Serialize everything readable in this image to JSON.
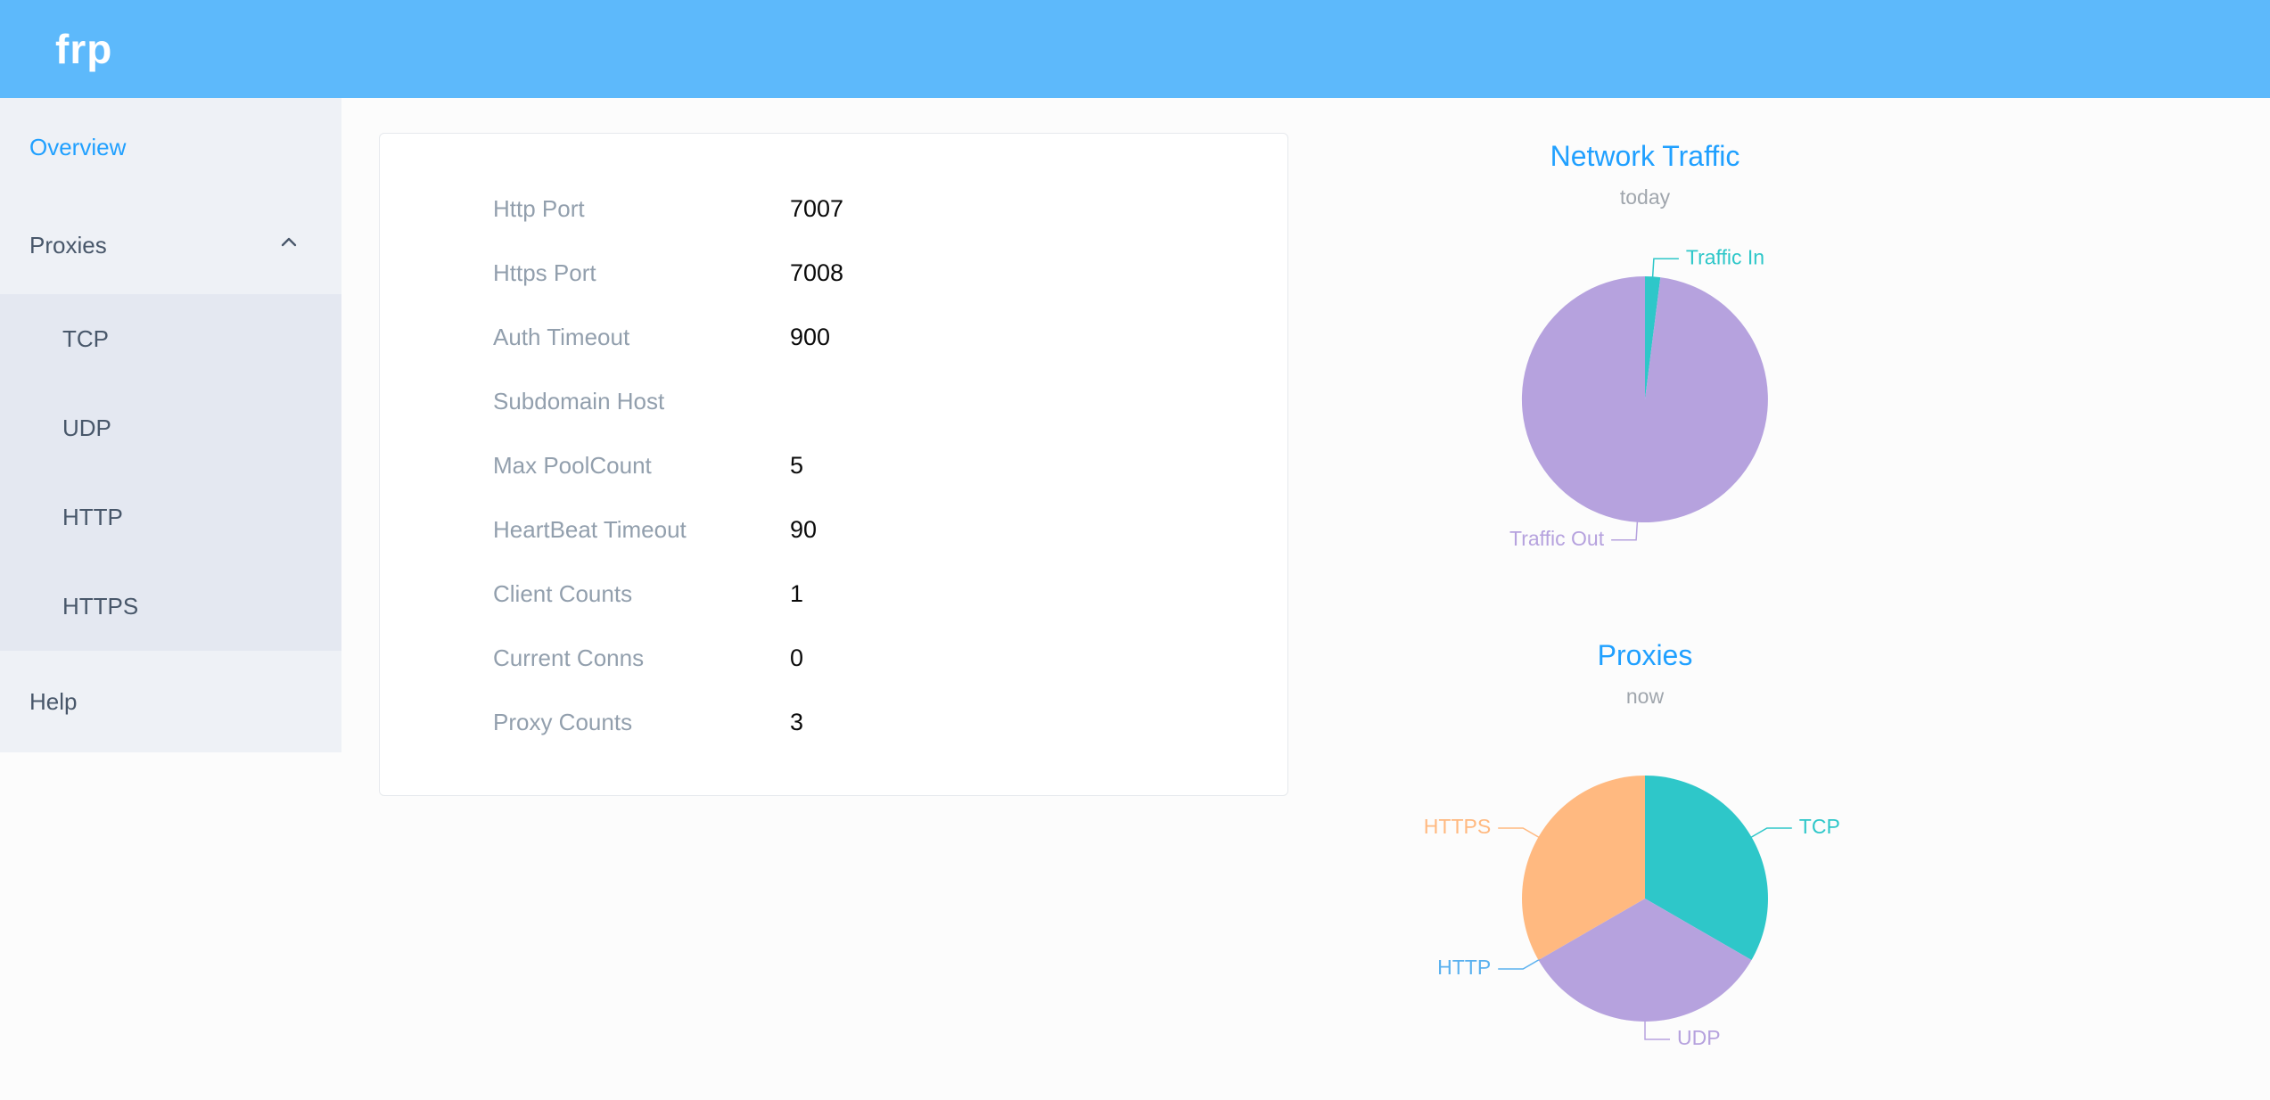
{
  "header": {
    "logo": "frp"
  },
  "sidebar": {
    "items": [
      {
        "label": "Overview",
        "active": true
      },
      {
        "label": "Proxies",
        "expanded": true
      },
      {
        "label": "Help"
      }
    ],
    "proxies_children": [
      {
        "label": "TCP"
      },
      {
        "label": "UDP"
      },
      {
        "label": "HTTP"
      },
      {
        "label": "HTTPS"
      }
    ]
  },
  "overview": {
    "rows": [
      {
        "label": "Http Port",
        "value": "7007"
      },
      {
        "label": "Https Port",
        "value": "7008"
      },
      {
        "label": "Auth Timeout",
        "value": "900"
      },
      {
        "label": "Subdomain Host",
        "value": ""
      },
      {
        "label": "Max PoolCount",
        "value": "5"
      },
      {
        "label": "HeartBeat Timeout",
        "value": "90"
      },
      {
        "label": "Client Counts",
        "value": "1"
      },
      {
        "label": "Current Conns",
        "value": "0"
      },
      {
        "label": "Proxy Counts",
        "value": "3"
      }
    ]
  },
  "colors": {
    "header_bg": "#5db9fb",
    "accent_blue": "#20a0ff",
    "sidebar_bg": "#eef1f6",
    "submenu_bg": "#e4e8f1",
    "teal": "#2ec7c9",
    "purple": "#b6a2de",
    "blue": "#5ab1ef",
    "orange": "#ffb980"
  },
  "chart_data": [
    {
      "type": "pie",
      "title": "Network Traffic",
      "subtitle": "today",
      "legend_position": "outside-labels",
      "series": [
        {
          "name": "Traffic In",
          "value": 2,
          "color": "#2ec7c9"
        },
        {
          "name": "Traffic Out",
          "value": 98,
          "color": "#b6a2de"
        }
      ]
    },
    {
      "type": "pie",
      "title": "Proxies",
      "subtitle": "now",
      "legend_position": "outside-labels",
      "series": [
        {
          "name": "TCP",
          "value": 1,
          "color": "#2ec7c9"
        },
        {
          "name": "UDP",
          "value": 1,
          "color": "#b6a2de"
        },
        {
          "name": "HTTP",
          "value": 0,
          "color": "#5ab1ef"
        },
        {
          "name": "HTTPS",
          "value": 1,
          "color": "#ffb980"
        }
      ]
    }
  ]
}
